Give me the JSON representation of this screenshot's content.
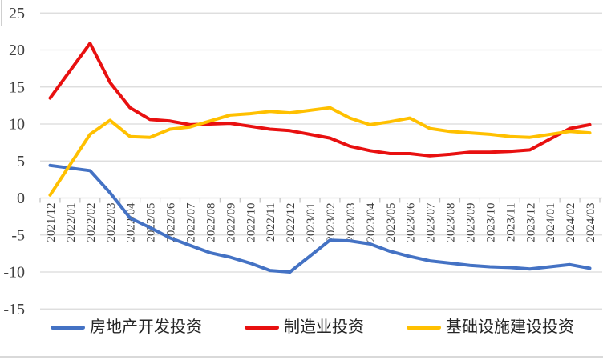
{
  "chart_data": {
    "type": "line",
    "title": "",
    "categories": [
      "2021/12",
      "2022/01",
      "2022/02",
      "2022/03",
      "2022/04",
      "2022/05",
      "2022/06",
      "2022/07",
      "2022/08",
      "2022/09",
      "2022/10",
      "2022/11",
      "2022/12",
      "2023/01",
      "2023/02",
      "2023/03",
      "2023/04",
      "2023/05",
      "2023/06",
      "2023/07",
      "2023/08",
      "2023/09",
      "2023/10",
      "2023/11",
      "2023/12",
      "2024/01",
      "2024/02",
      "2024/03"
    ],
    "series": [
      {
        "id": "real-estate-development",
        "name": "房地产开发投资",
        "color": "#4472C4",
        "values": [
          4.4,
          null,
          3.7,
          0.7,
          -2.7,
          -4.0,
          -5.4,
          -6.4,
          -7.4,
          -8.0,
          -8.8,
          -9.8,
          -10.0,
          null,
          -5.7,
          -5.8,
          -6.2,
          -7.2,
          -7.9,
          -8.5,
          -8.8,
          -9.1,
          -9.3,
          -9.4,
          -9.6,
          null,
          -9.0,
          -9.5
        ]
      },
      {
        "id": "manufacturing",
        "name": "制造业投资",
        "color": "#E81010",
        "values": [
          13.5,
          null,
          20.9,
          15.6,
          12.2,
          10.6,
          10.4,
          9.9,
          10.0,
          10.1,
          9.7,
          9.3,
          9.1,
          null,
          8.1,
          7.0,
          6.4,
          6.0,
          6.0,
          5.7,
          5.9,
          6.2,
          6.2,
          6.3,
          6.5,
          null,
          9.4,
          9.9
        ]
      },
      {
        "id": "infrastructure",
        "name": "基础设施建设投资",
        "color": "#FFC000",
        "values": [
          0.4,
          null,
          8.6,
          10.5,
          8.3,
          8.2,
          9.3,
          9.6,
          10.4,
          11.2,
          11.4,
          11.7,
          11.5,
          null,
          12.2,
          10.8,
          9.9,
          10.3,
          10.8,
          9.4,
          9.0,
          8.8,
          8.6,
          8.3,
          8.2,
          null,
          9.0,
          8.8
        ]
      }
    ],
    "ylim": [
      -15,
      25
    ],
    "yticks": [
      25,
      20,
      15,
      10,
      5,
      0,
      -5,
      -10,
      -15
    ],
    "xlabel": "",
    "ylabel": "",
    "grid": true,
    "legend_position": "bottom"
  },
  "style": {
    "background": "#FFFFFF",
    "grid_color": "#D9D9D9",
    "axis_color": "#BFBFBF",
    "tick_label_color": "#404040",
    "legend_text_color": "#262626"
  }
}
